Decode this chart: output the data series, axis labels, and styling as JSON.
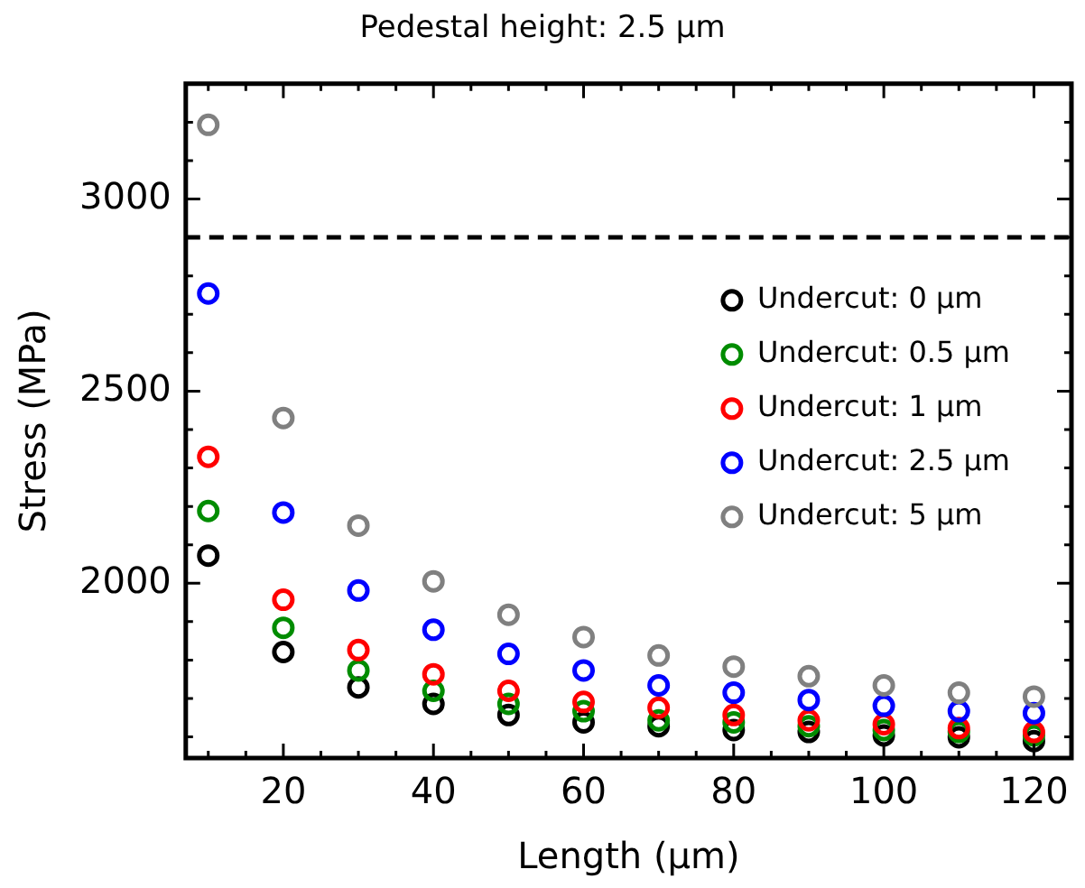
{
  "chart_data": {
    "type": "scatter",
    "title": "Pedestal height: 2.5 μm",
    "xlabel": "Length (μm)",
    "ylabel": "Stress (MPa)",
    "x": [
      10,
      20,
      30,
      40,
      50,
      60,
      70,
      80,
      90,
      100,
      110,
      120
    ],
    "series": [
      {
        "name": "Undercut: 0 μm",
        "color": "#000000",
        "values": [
          2072,
          1821,
          1729,
          1686,
          1657,
          1638,
          1628,
          1618,
          1613,
          1604,
          1599,
          1589
        ]
      },
      {
        "name": "Undercut: 0.5 μm",
        "color": "#008c00",
        "values": [
          2188,
          1884,
          1773,
          1720,
          1686,
          1667,
          1643,
          1638,
          1628,
          1618,
          1613,
          1604
        ]
      },
      {
        "name": "Undercut: 1 μm",
        "color": "#ff0000",
        "values": [
          2329,
          1957,
          1826,
          1763,
          1720,
          1691,
          1676,
          1657,
          1643,
          1633,
          1623,
          1613
        ]
      },
      {
        "name": "Undercut: 2.5 μm",
        "color": "#0000ff",
        "values": [
          2754,
          2184,
          1981,
          1879,
          1816,
          1773,
          1734,
          1715,
          1696,
          1681,
          1667,
          1662
        ]
      },
      {
        "name": "Undercut: 5 μm",
        "color": "#808080",
        "values": [
          3193,
          2430,
          2150,
          2005,
          1918,
          1860,
          1812,
          1783,
          1758,
          1734,
          1715,
          1705
        ]
      }
    ],
    "xlim": [
      7,
      125
    ],
    "ylim": [
      1545,
      3300
    ],
    "xticks": [
      {
        "value": 10,
        "label": null
      },
      {
        "value": 15,
        "label": null
      },
      20,
      {
        "value": 25,
        "label": null
      },
      {
        "value": 30,
        "label": null
      },
      {
        "value": 35,
        "label": null
      },
      40,
      {
        "value": 45,
        "label": null
      },
      {
        "value": 50,
        "label": null
      },
      {
        "value": 55,
        "label": null
      },
      60,
      {
        "value": 65,
        "label": null
      },
      {
        "value": 70,
        "label": null
      },
      {
        "value": 75,
        "label": null
      },
      80,
      {
        "value": 85,
        "label": null
      },
      {
        "value": 90,
        "label": null
      },
      {
        "value": 95,
        "label": null
      },
      100,
      {
        "value": 105,
        "label": null
      },
      {
        "value": 110,
        "label": null
      },
      {
        "value": 115,
        "label": null
      },
      120
    ],
    "yticks": [
      {
        "value": 1600,
        "label": null
      },
      {
        "value": 1700,
        "label": null
      },
      {
        "value": 1800,
        "label": null
      },
      {
        "value": 1900,
        "label": null
      },
      2000,
      {
        "value": 2100,
        "label": null
      },
      {
        "value": 2200,
        "label": null
      },
      {
        "value": 2300,
        "label": null
      },
      {
        "value": 2400,
        "label": null
      },
      2500,
      {
        "value": 2600,
        "label": null
      },
      {
        "value": 2700,
        "label": null
      },
      {
        "value": 2800,
        "label": null
      },
      {
        "value": 2900,
        "label": null
      },
      3000,
      {
        "value": 3100,
        "label": null
      },
      {
        "value": 3200,
        "label": null
      }
    ],
    "ref_lines": [
      {
        "axis": "y",
        "value": 2900,
        "color": "#000000",
        "line_style": "dashed"
      }
    ],
    "grid": false,
    "legend": "top right",
    "marker": "circle"
  }
}
